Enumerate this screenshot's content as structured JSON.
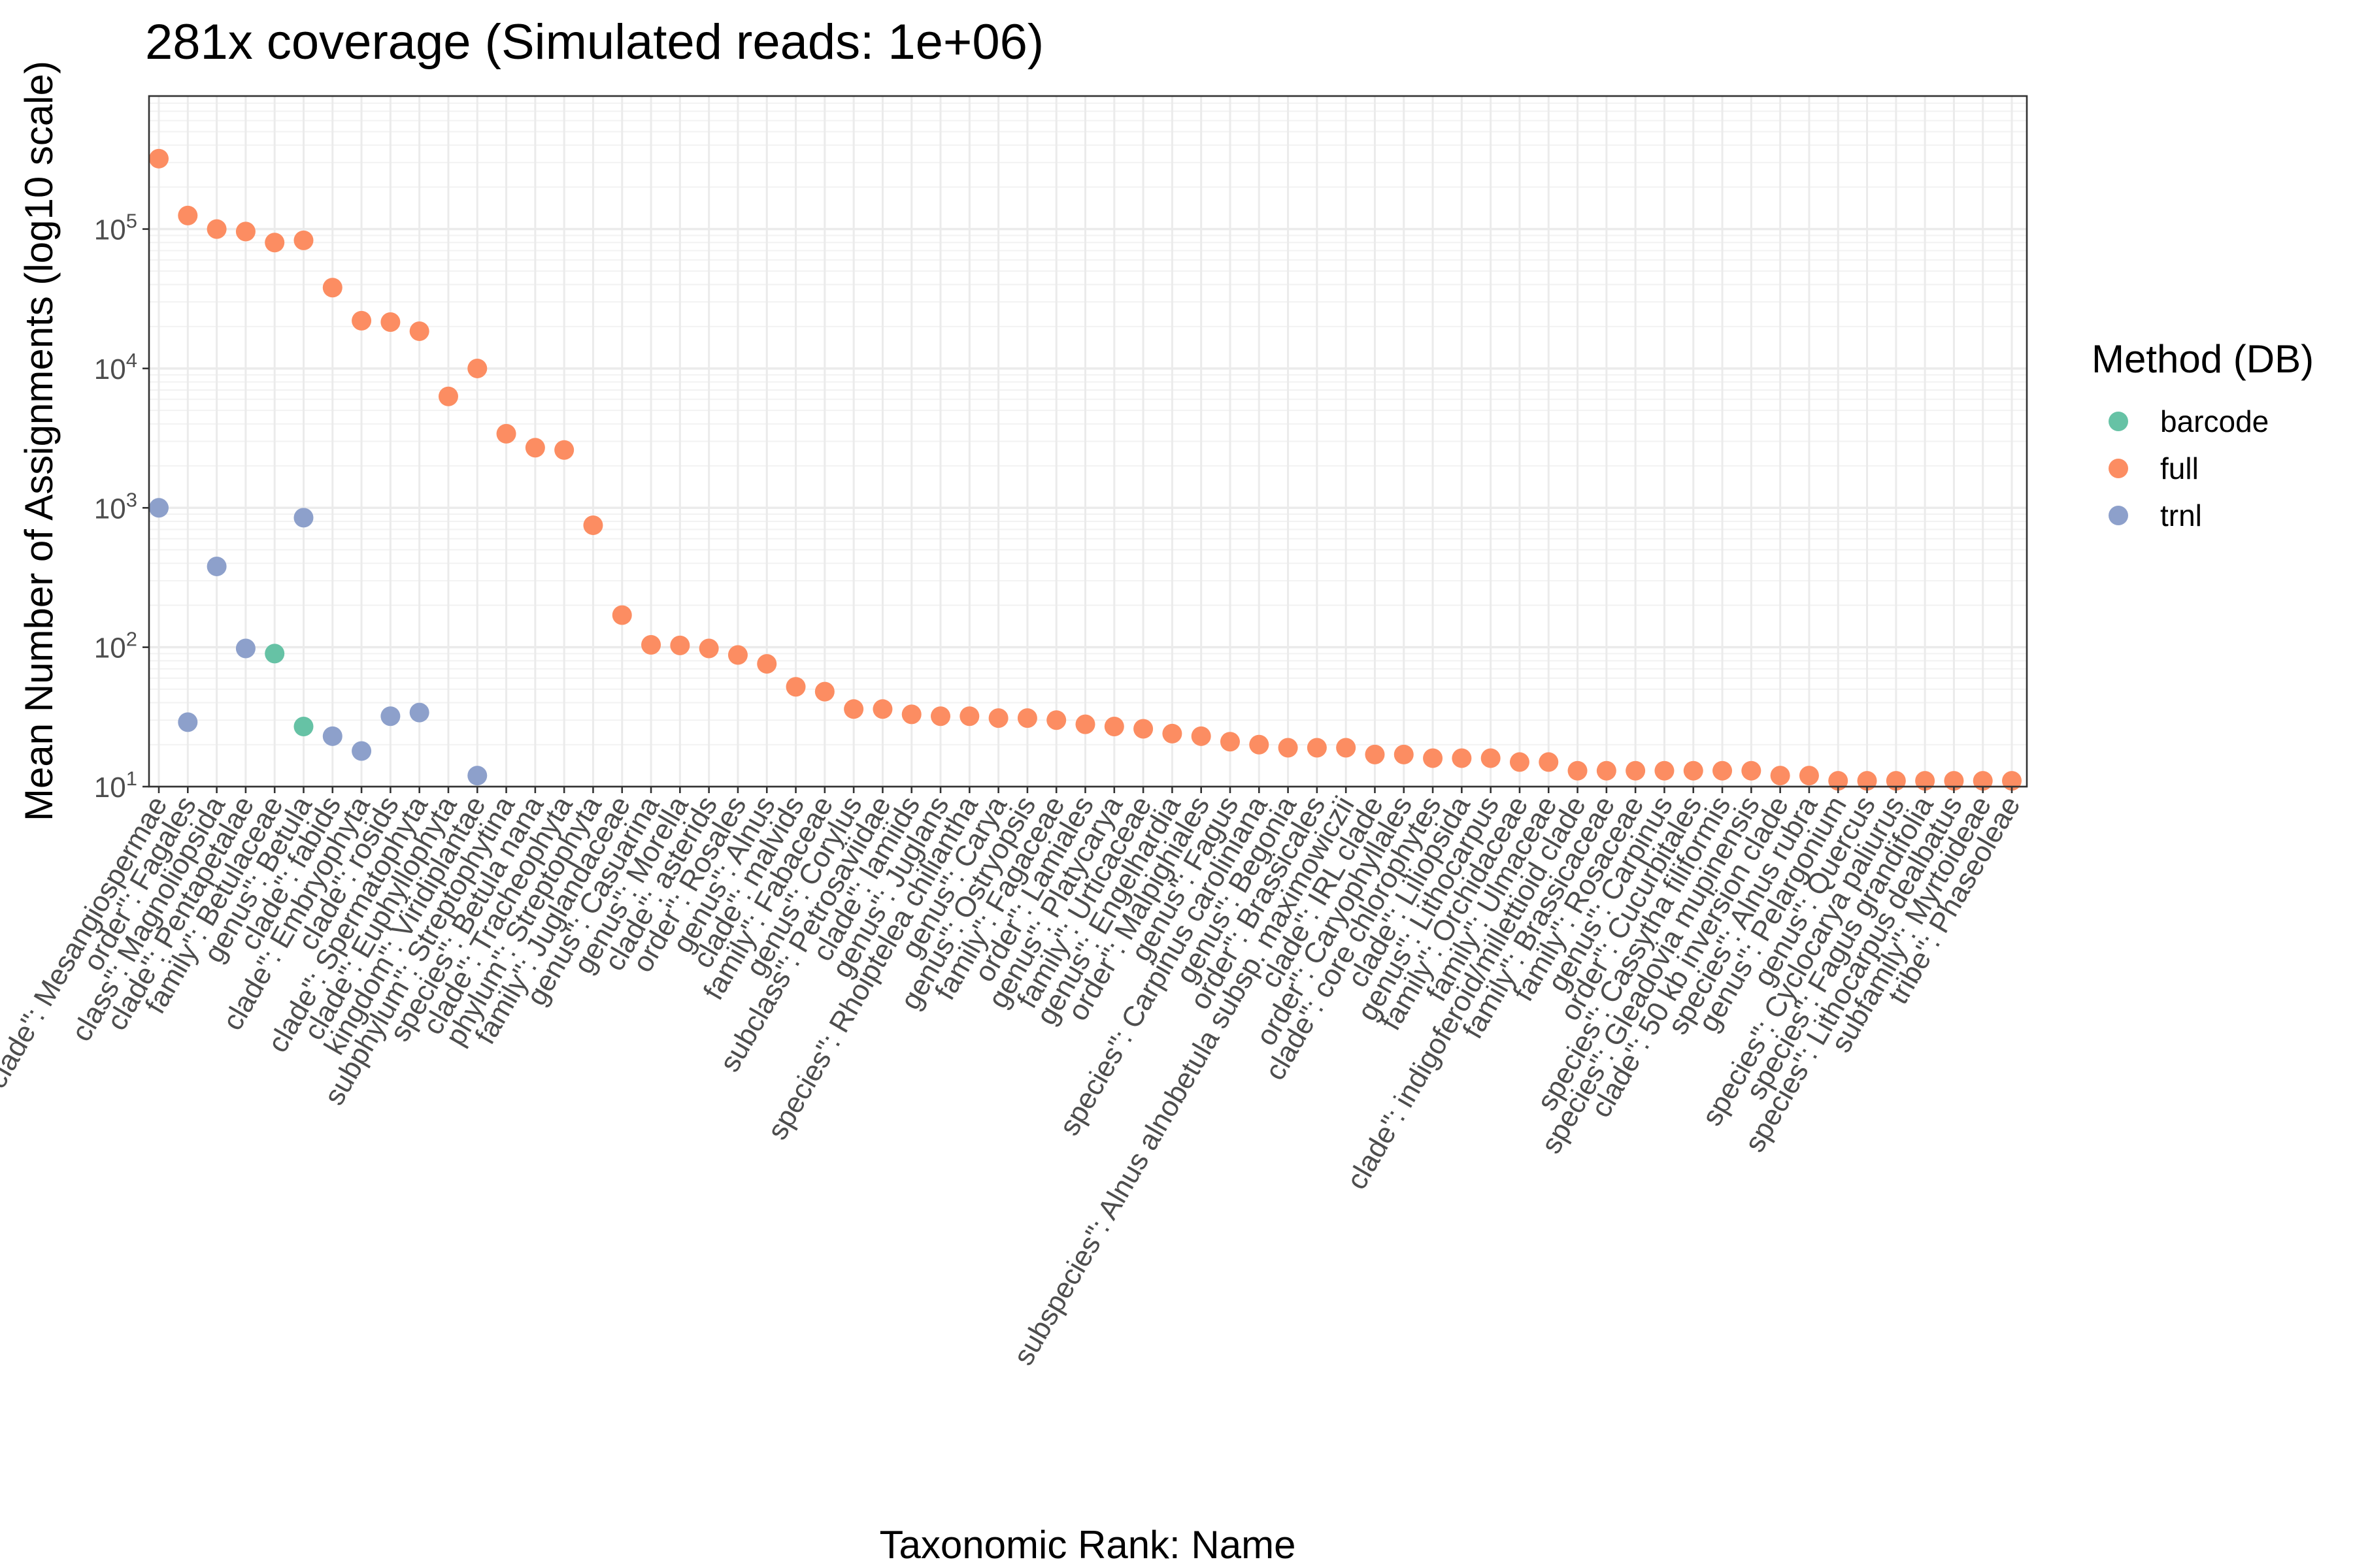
{
  "chart_data": {
    "type": "scatter",
    "title": "281x coverage (Simulated reads: 1e+06)",
    "xlabel": "Taxonomic Rank: Name",
    "ylabel": "Mean Number of Assignments (log10 scale)",
    "y_scale": "log10",
    "ylim": [
      10,
      900000
    ],
    "y_ticks": [
      10,
      100,
      1000,
      10000,
      100000
    ],
    "grid": true,
    "legend": {
      "title": "Method (DB)",
      "placement": "right"
    },
    "categories": [
      "clade\": Mesangiospermae",
      "order\": Fagales",
      "class\": Magnoliopsida",
      "clade\": Pentapetalae",
      "family\": Betulaceae",
      "genus\": Betula",
      "clade\": fabids",
      "clade\": Embryophyta",
      "clade\": rosids",
      "clade\": Spermatophyta",
      "clade\": Euphyllophyta",
      "kingdom\": Viridiplantae",
      "subphylum\": Streptophytina",
      "species\": Betula nana",
      "clade\": Tracheophyta",
      "phylum\": Streptophyta",
      "family\": Juglandaceae",
      "genus\": Casuarina",
      "genus\": Morella",
      "clade\": asterids",
      "order\": Rosales",
      "genus\": Alnus",
      "clade\": malvids",
      "family\": Fabaceae",
      "genus\": Corylus",
      "subclass\": Petrosaviidae",
      "clade\": lamiids",
      "genus\": Juglans",
      "species\": Rhoiptelea chiliantha",
      "genus\": Carya",
      "genus\": Ostryopsis",
      "family\": Fagaceae",
      "order\": Lamiales",
      "genus\": Platycarya",
      "family\": Urticaceae",
      "genus\": Engelhardia",
      "order\": Malpighiales",
      "genus\": Fagus",
      "species\": Carpinus caroliniana",
      "genus\": Begonia",
      "order\": Brassicales",
      "subspecies\": Alnus alnobetula subsp. maximowiczii",
      "clade\": IRL clade",
      "order\": Caryophyllales",
      "clade\": core chlorophytes",
      "clade\": Liliopsida",
      "genus\": Lithocarpus",
      "family\": Orchidaceae",
      "family\": Ulmaceae",
      "clade\": indigoferoid/millettioid clade",
      "family\": Brassicaceae",
      "family\": Rosaceae",
      "genus\": Carpinus",
      "order\": Cucurbitales",
      "species\": Cassytha filiformis",
      "species\": Gleadovia mupinensis",
      "clade\": 50 kb inversion clade",
      "species\": Alnus rubra",
      "genus\": Pelargonium",
      "genus\": Quercus",
      "species\": Cyclocarya paliurus",
      "species\": Fagus grandifolia",
      "species\": Lithocarpus dealbatus",
      "subfamily\": Myrtoideae",
      "tribe\": Phaseoleae"
    ],
    "tick_labels": [
      "clade\": Mesangiospermae",
      "order\": Fagales",
      "class\": Magnoliopsida",
      "clade\": Pentapetalae",
      "family\": Betulaceae",
      "genus\": Betula",
      "clade\": fabids",
      "clade\": Embryophyta",
      "clade\": rosids",
      "clade\": Spermatophyta",
      "clade\": Euphyllophyta",
      "kingdom\": Viridiplantae",
      "subphylum\": Streptophytina",
      "species\": Betula nana",
      "clade\": Tracheophyta",
      "phylum\": Streptophyta",
      "family\": Juglandaceae",
      "genus\": Casuarina",
      "genus\": Morella",
      "clade\": asterids",
      "order\": Rosales",
      "genus\": Alnus",
      "clade\": malvids",
      "family\": Fabaceae",
      "genus\": Corylus",
      "subclass\": Petrosaviidae",
      "clade\": lamiids",
      "genus\": Juglans",
      "species\": Rhoiptelea chiliantha",
      "genus\": Carya",
      "genus\": Ostryopsis",
      "family\": Fagaceae",
      "order\": Lamiales",
      "genus\": Platycarya",
      "family\": Urticaceae",
      "genus\": Engelhardia",
      "order\": Malpighiales",
      "genus\": Fagus",
      "species\": Carpinus caroliniana",
      "genus\": Begonia",
      "order\": Brassicales",
      "subspecies\": Alnus alnobetula subsp. maximowiczii",
      "clade\": IRL clade",
      "order\": Caryophyllales",
      "clade\": core chlorophytes",
      "clade\": Liliopsida",
      "genus\": Lithocarpus",
      "family\": Orchidaceae",
      "family\": Ulmaceae",
      "clade\": indigoferoid/millettioid clade",
      "family\": Brassicaceae",
      "family\": Rosaceae",
      "genus\": Carpinus",
      "order\": Cucurbitales",
      "species\": Cassytha filiformis",
      "species\": Gleadovia mupinensis",
      "clade\": 50 kb inversion clade",
      "species\": Alnus rubra",
      "genus\": Pelargonium",
      "genus\": Quercus",
      "species\": Cyclocarya paliurus",
      "species\": Fagus grandifolia",
      "species\": Lithocarpus dealbatus",
      "subfamily\": Myrtoideae",
      "tribe\": Phaseoleae"
    ],
    "series": [
      {
        "name": "barcode",
        "color": "#66c2a5",
        "points": [
          {
            "x": 4,
            "y": 90
          },
          {
            "x": 5,
            "y": 27
          }
        ]
      },
      {
        "name": "full",
        "color": "#fc8d62",
        "points": [
          {
            "x": 0,
            "y": 320000
          },
          {
            "x": 1,
            "y": 125000
          },
          {
            "x": 2,
            "y": 100000
          },
          {
            "x": 3,
            "y": 96000
          },
          {
            "x": 4,
            "y": 80000
          },
          {
            "x": 5,
            "y": 83000
          },
          {
            "x": 6,
            "y": 38000
          },
          {
            "x": 7,
            "y": 22000
          },
          {
            "x": 8,
            "y": 21500
          },
          {
            "x": 9,
            "y": 18500
          },
          {
            "x": 10,
            "y": 6300
          },
          {
            "x": 11,
            "y": 10000
          },
          {
            "x": 12,
            "y": 3400
          },
          {
            "x": 13,
            "y": 2700
          },
          {
            "x": 14,
            "y": 2600
          },
          {
            "x": 15,
            "y": 750
          },
          {
            "x": 16,
            "y": 170
          },
          {
            "x": 17,
            "y": 104
          },
          {
            "x": 18,
            "y": 103
          },
          {
            "x": 19,
            "y": 98
          },
          {
            "x": 20,
            "y": 88
          },
          {
            "x": 21,
            "y": 76
          },
          {
            "x": 22,
            "y": 52
          },
          {
            "x": 23,
            "y": 48
          },
          {
            "x": 24,
            "y": 36
          },
          {
            "x": 25,
            "y": 36
          },
          {
            "x": 26,
            "y": 33
          },
          {
            "x": 27,
            "y": 32
          },
          {
            "x": 28,
            "y": 32
          },
          {
            "x": 29,
            "y": 31
          },
          {
            "x": 30,
            "y": 31
          },
          {
            "x": 31,
            "y": 30
          },
          {
            "x": 32,
            "y": 28
          },
          {
            "x": 33,
            "y": 27
          },
          {
            "x": 34,
            "y": 26
          },
          {
            "x": 35,
            "y": 24
          },
          {
            "x": 36,
            "y": 23
          },
          {
            "x": 37,
            "y": 21
          },
          {
            "x": 38,
            "y": 20
          },
          {
            "x": 39,
            "y": 19
          },
          {
            "x": 40,
            "y": 19
          },
          {
            "x": 41,
            "y": 19
          },
          {
            "x": 42,
            "y": 17
          },
          {
            "x": 43,
            "y": 17
          },
          {
            "x": 44,
            "y": 16
          },
          {
            "x": 45,
            "y": 16
          },
          {
            "x": 46,
            "y": 16
          },
          {
            "x": 47,
            "y": 15
          },
          {
            "x": 48,
            "y": 15
          },
          {
            "x": 49,
            "y": 13
          },
          {
            "x": 50,
            "y": 13
          },
          {
            "x": 51,
            "y": 13
          },
          {
            "x": 52,
            "y": 13
          },
          {
            "x": 53,
            "y": 13
          },
          {
            "x": 54,
            "y": 13
          },
          {
            "x": 55,
            "y": 13
          },
          {
            "x": 56,
            "y": 12
          },
          {
            "x": 57,
            "y": 12
          },
          {
            "x": 58,
            "y": 11
          },
          {
            "x": 59,
            "y": 11
          },
          {
            "x": 60,
            "y": 11
          },
          {
            "x": 61,
            "y": 11
          },
          {
            "x": 62,
            "y": 11
          },
          {
            "x": 63,
            "y": 11
          },
          {
            "x": 64,
            "y": 11
          }
        ]
      },
      {
        "name": "trnl",
        "color": "#8da0cb",
        "points": [
          {
            "x": 0,
            "y": 1000
          },
          {
            "x": 1,
            "y": 29
          },
          {
            "x": 2,
            "y": 380
          },
          {
            "x": 3,
            "y": 98
          },
          {
            "x": 5,
            "y": 850
          },
          {
            "x": 6,
            "y": 23
          },
          {
            "x": 7,
            "y": 18
          },
          {
            "x": 8,
            "y": 32
          },
          {
            "x": 9,
            "y": 34
          },
          {
            "x": 11,
            "y": 12
          }
        ]
      }
    ]
  }
}
